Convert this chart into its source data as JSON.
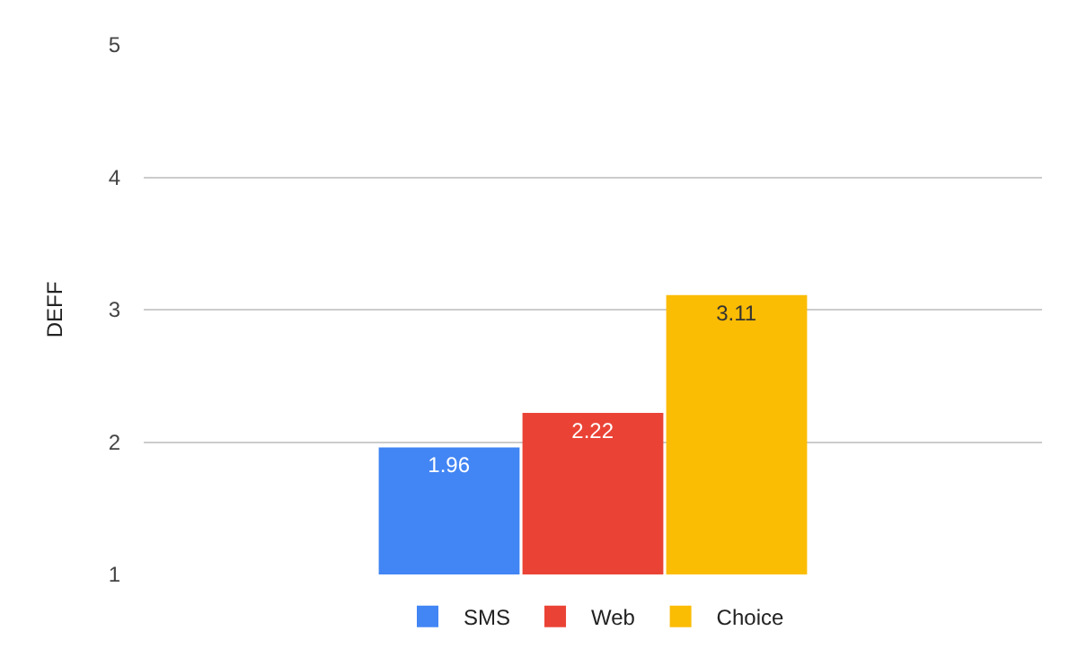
{
  "chart_data": {
    "type": "bar",
    "ylabel": "DEFF",
    "categories": [
      null
    ],
    "series": [
      {
        "name": "SMS",
        "color": "#4285f4",
        "values": [
          1.96
        ]
      },
      {
        "name": "Web",
        "color": "#ea4335",
        "values": [
          2.22
        ]
      },
      {
        "name": "Choice",
        "color": "#fbbc04",
        "values": [
          3.11
        ]
      }
    ],
    "ylim": [
      1,
      5
    ],
    "yticks": [
      1,
      2,
      3,
      4,
      5
    ],
    "grid": "y",
    "legend": "bottom",
    "data_labels": true,
    "tick_labels": "y"
  }
}
